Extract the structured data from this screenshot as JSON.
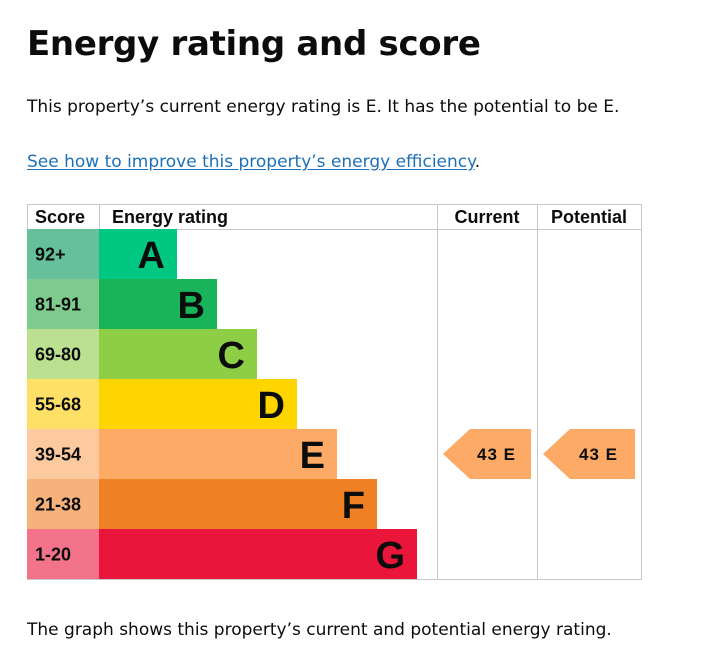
{
  "page": {
    "title": "Energy rating and score",
    "summary": "This property’s current energy rating is E. It has the potential to be E.",
    "link_text": "See how to improve this property’s energy efficiency",
    "link_suffix": ".",
    "caption": "The graph shows this property’s current and potential energy rating."
  },
  "chart_data": {
    "type": "bar",
    "headers": {
      "score": "Score",
      "rating": "Energy rating",
      "current": "Current",
      "potential": "Potential"
    },
    "bands": [
      {
        "letter": "A",
        "range": "92+",
        "color": "#008054",
        "score_color": "#66c09b",
        "bar_color": "#00c781"
      },
      {
        "letter": "B",
        "range": "81-91",
        "color": "#19b459",
        "score_color": "#7ecb8e",
        "bar_color": "#19b459"
      },
      {
        "letter": "C",
        "range": "69-80",
        "color": "#8dce46",
        "score_color": "#bbe090",
        "bar_color": "#8dce46"
      },
      {
        "letter": "D",
        "range": "55-68",
        "color": "#ffd500",
        "score_color": "#ffe066",
        "bar_color": "#ffd500"
      },
      {
        "letter": "E",
        "range": "39-54",
        "color": "#fcaa65",
        "score_color": "#fdca9f",
        "bar_color": "#fcaa65"
      },
      {
        "letter": "F",
        "range": "21-38",
        "color": "#ef8023",
        "score_color": "#f5b27a",
        "bar_color": "#ef8023"
      },
      {
        "letter": "G",
        "range": "1-20",
        "color": "#e9153b",
        "score_color": "#f2738a",
        "bar_color": "#e9153b"
      }
    ],
    "current": {
      "score": 43,
      "band": "E",
      "label": "43 E"
    },
    "potential": {
      "score": 43,
      "band": "E",
      "label": "43 E"
    }
  }
}
